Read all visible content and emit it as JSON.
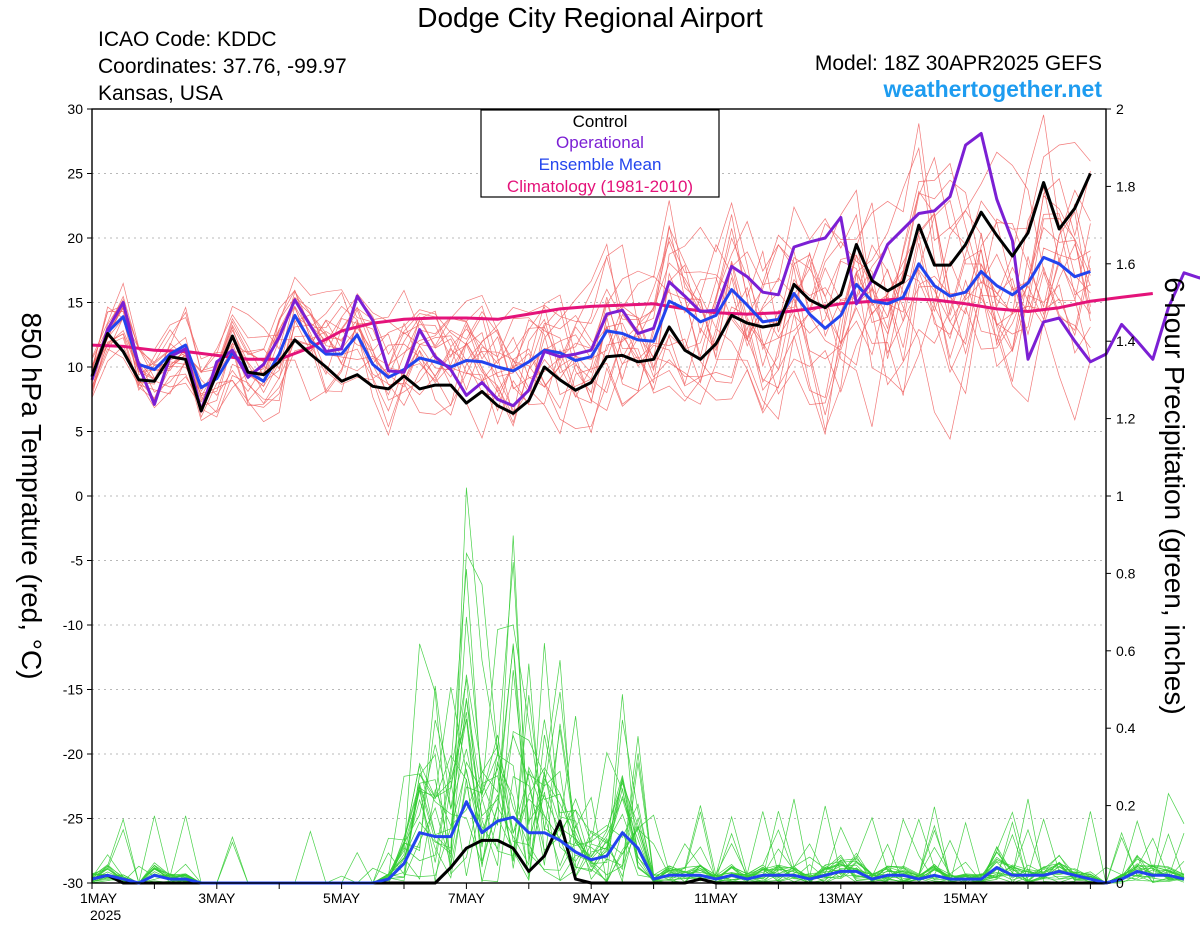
{
  "header": {
    "title": "Dodge City Regional Airport",
    "icao": "ICAO Code: KDDC",
    "coords": "Coordinates: 37.76, -99.97",
    "region": "Kansas, USA",
    "model": "Model: 18Z 30APR2025 GEFS",
    "site": "weathertogether.net"
  },
  "colors": {
    "control": "#000000",
    "operational": "#7b1fd4",
    "ensemble_mean": "#2244ee",
    "climatology": "#e4137a",
    "members_temp": "#f06060",
    "members_precip": "#33cc33",
    "site": "#1e9cf0"
  },
  "chart_data": {
    "type": "line",
    "xlabel": "",
    "ylabel": "850 hPa Temprature (red, °C)",
    "y2label": "6-hour Precipitation (green, inches)",
    "xlim": [
      0,
      16.25
    ],
    "ylim": [
      -30,
      30
    ],
    "y2lim": [
      0,
      2
    ],
    "grid": true,
    "legend_position": "top-center",
    "legend": [
      "Control",
      "Operational",
      "Ensemble Mean",
      "Climatology (1981-2010)"
    ],
    "x_ticks": [
      {
        "x": 0,
        "label": "1MAY",
        "sub": "2025"
      },
      {
        "x": 2,
        "label": "3MAY"
      },
      {
        "x": 4,
        "label": "5MAY"
      },
      {
        "x": 6,
        "label": "7MAY"
      },
      {
        "x": 8,
        "label": "9MAY"
      },
      {
        "x": 10,
        "label": "11MAY"
      },
      {
        "x": 12,
        "label": "13MAY"
      },
      {
        "x": 14,
        "label": "15MAY"
      }
    ],
    "y_ticks": [
      30,
      25,
      20,
      15,
      10,
      5,
      0,
      -5,
      -10,
      -15,
      -20,
      -25,
      -30
    ],
    "y2_ticks": [
      "2",
      "1.8",
      "1.6",
      "1.4",
      "1.2",
      "1",
      "0.8",
      "0.6",
      "0.4",
      "0.2",
      "0"
    ],
    "temperature_series": [
      {
        "name": "Control",
        "x_start": 0.0,
        "x_step": 0.25,
        "values": [
          9.3,
          12.6,
          11.2,
          9.0,
          8.9,
          10.8,
          10.6,
          6.6,
          9.5,
          12.4,
          9.6,
          9.4,
          10.4,
          12.1,
          11.0,
          10.0,
          8.9,
          9.4,
          8.5,
          8.3,
          9.3,
          8.3,
          8.6,
          8.6,
          7.2,
          8.1,
          7.0,
          6.4,
          7.4,
          10.0,
          9.0,
          8.2,
          8.8,
          10.8,
          10.9,
          10.4,
          10.6,
          13.1,
          11.3,
          10.6,
          11.8,
          14.0,
          13.4,
          13.1,
          13.3,
          16.4,
          15.2,
          14.6,
          15.6,
          19.5,
          16.7,
          15.9,
          16.6,
          21.0,
          17.9,
          17.9,
          19.5,
          22.0,
          20.2,
          18.6,
          20.4,
          24.3,
          20.7,
          22.3,
          25.0
        ]
      },
      {
        "name": "Operational",
        "x_start": 0.0,
        "x_step": 0.25,
        "values": [
          9.0,
          12.9,
          15.0,
          10.1,
          7.1,
          10.8,
          11.4,
          6.6,
          10.4,
          11.3,
          9.2,
          10.2,
          12.3,
          15.2,
          13.2,
          11.2,
          11.4,
          15.5,
          13.6,
          9.7,
          9.6,
          12.9,
          10.8,
          9.8,
          7.8,
          8.8,
          7.5,
          7.0,
          8.2,
          11.2,
          10.8,
          11.0,
          11.3,
          14.1,
          14.4,
          12.6,
          13.0,
          16.6,
          15.5,
          14.3,
          14.4,
          17.8,
          17.0,
          15.8,
          15.6,
          19.3,
          19.7,
          20.0,
          21.6,
          14.9,
          16.7,
          19.5,
          20.7,
          21.9,
          22.1,
          23.2,
          27.2,
          28.1,
          23.0,
          19.8,
          10.6,
          13.5,
          13.8,
          12.0,
          10.4,
          11.0,
          13.3,
          12.0,
          10.6,
          14.6,
          17.3,
          16.9,
          17.6
        ]
      },
      {
        "name": "Ensemble Mean",
        "x_start": 0.0,
        "x_step": 0.25,
        "values": [
          9.2,
          12.7,
          13.9,
          10.2,
          9.8,
          11.0,
          11.7,
          8.4,
          9.1,
          11.1,
          9.6,
          8.9,
          11.0,
          14.0,
          12.0,
          11.0,
          11.0,
          12.5,
          10.2,
          9.2,
          9.8,
          10.7,
          10.4,
          10.0,
          10.5,
          10.4,
          10.0,
          9.7,
          10.4,
          11.3,
          11.1,
          10.5,
          10.8,
          12.8,
          12.6,
          12.1,
          12.0,
          15.1,
          14.5,
          13.5,
          14.0,
          16.0,
          14.8,
          13.5,
          13.7,
          15.7,
          14.1,
          13.0,
          14.0,
          16.4,
          15.1,
          14.9,
          15.4,
          18.0,
          16.3,
          15.5,
          15.8,
          17.4,
          16.3,
          15.6,
          16.5,
          18.5,
          18.0,
          17.0,
          17.4
        ]
      },
      {
        "name": "Climatology (1981-2010)",
        "x_start": 0.0,
        "x_step": 0.5,
        "values": [
          11.7,
          11.6,
          11.3,
          11.2,
          10.9,
          10.6,
          10.6,
          11.5,
          12.8,
          13.4,
          13.7,
          13.8,
          13.8,
          13.7,
          14.1,
          14.5,
          14.7,
          14.8,
          14.9,
          14.5,
          14.2,
          14.1,
          14.2,
          14.5,
          14.9,
          15.1,
          15.3,
          15.2,
          14.9,
          14.5,
          14.3,
          14.6,
          15.1,
          15.4,
          15.7
        ]
      }
    ],
    "precipitation_series": [
      {
        "name": "Control",
        "x_start": 0.0,
        "x_step": 0.25,
        "values": [
          0.01,
          0.02,
          0.0,
          0.0,
          0.0,
          0.0,
          0.0,
          0.0,
          0.0,
          0.0,
          0.0,
          0.0,
          0.0,
          0.0,
          0.0,
          0.0,
          0.0,
          0.0,
          0.0,
          0.0,
          0.0,
          0.0,
          0.0,
          0.04,
          0.09,
          0.11,
          0.11,
          0.09,
          0.03,
          0.07,
          0.16,
          0.01,
          0.0,
          0.0,
          0.0,
          0.0,
          0.0,
          0.0,
          0.0,
          0.01,
          0.0,
          0.0,
          0.0,
          0.0,
          0.0,
          0.0,
          0.0,
          0.0,
          0.0,
          0.0,
          0.0,
          0.0,
          0.0,
          0.0,
          0.0,
          0.0,
          0.0,
          0.0,
          0.0,
          0.0,
          0.0,
          0.0,
          0.0,
          0.0,
          0.0,
          0.0,
          0.01
        ]
      },
      {
        "name": "Ensemble Mean",
        "x_start": 0.0,
        "x_step": 0.25,
        "values": [
          0.01,
          0.02,
          0.01,
          0.0,
          0.02,
          0.01,
          0.01,
          0.0,
          0.0,
          0.0,
          0.0,
          0.0,
          0.0,
          0.0,
          0.0,
          0.0,
          0.0,
          0.0,
          0.0,
          0.01,
          0.05,
          0.13,
          0.12,
          0.12,
          0.21,
          0.13,
          0.16,
          0.17,
          0.13,
          0.13,
          0.11,
          0.08,
          0.06,
          0.07,
          0.13,
          0.09,
          0.01,
          0.02,
          0.02,
          0.02,
          0.01,
          0.02,
          0.01,
          0.02,
          0.02,
          0.02,
          0.01,
          0.02,
          0.03,
          0.03,
          0.01,
          0.02,
          0.02,
          0.01,
          0.02,
          0.01,
          0.01,
          0.01,
          0.04,
          0.02,
          0.02,
          0.02,
          0.03,
          0.02,
          0.01,
          0.0,
          0.01,
          0.03,
          0.02,
          0.02,
          0.01
        ]
      }
    ]
  }
}
